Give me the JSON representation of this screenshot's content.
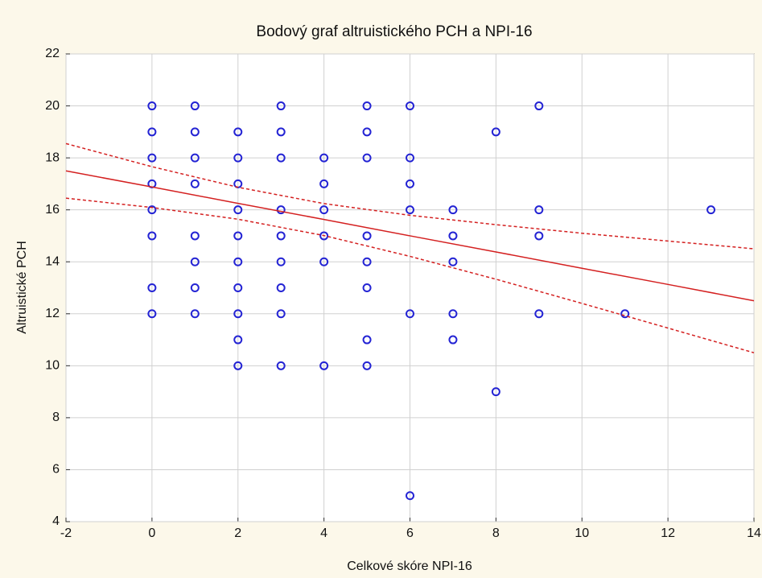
{
  "chart_data": {
    "type": "scatter",
    "title": "Bodový graf altruistického PCH a NPI-16",
    "x_label": "Celkové skóre NPI-16",
    "y_label": "Altruistické PCH",
    "xlim": [
      -2,
      14
    ],
    "xticks": [
      -2,
      0,
      2,
      4,
      6,
      8,
      10,
      12,
      14
    ],
    "ylim": [
      4,
      22
    ],
    "yticks": [
      4,
      6,
      8,
      10,
      12,
      14,
      16,
      18,
      20,
      22
    ],
    "grid": true,
    "series": [
      {
        "type": "scatter",
        "color": "#2424d4",
        "x": [
          0,
          0,
          0,
          0,
          0,
          0,
          0,
          0,
          1,
          1,
          1,
          1,
          1,
          1,
          1,
          1,
          2,
          2,
          2,
          2,
          2,
          2,
          2,
          2,
          2,
          2,
          3,
          3,
          3,
          3,
          3,
          3,
          3,
          3,
          3,
          4,
          4,
          4,
          4,
          4,
          4,
          5,
          5,
          5,
          5,
          5,
          5,
          5,
          5,
          6,
          6,
          6,
          6,
          6,
          6,
          7,
          7,
          7,
          7,
          7,
          8,
          8,
          9,
          9,
          9,
          9,
          11,
          13
        ],
        "values": [
          20,
          19,
          18,
          17,
          16,
          15,
          13,
          12,
          20,
          19,
          18,
          17,
          15,
          14,
          13,
          12,
          19,
          18,
          17,
          16,
          15,
          14,
          13,
          12,
          11,
          10,
          20,
          19,
          18,
          16,
          15,
          14,
          13,
          12,
          10,
          18,
          17,
          16,
          15,
          14,
          10,
          20,
          19,
          18,
          15,
          14,
          13,
          11,
          10,
          20,
          18,
          17,
          16,
          12,
          5,
          16,
          15,
          14,
          12,
          11,
          19,
          9,
          20,
          16,
          15,
          12,
          12,
          16
        ]
      },
      {
        "type": "line",
        "color": "#d42020",
        "dashed": false,
        "x": [
          -2,
          0,
          2,
          4,
          6,
          8,
          10,
          12,
          14
        ],
        "values": [
          17.5,
          16.88,
          16.25,
          15.63,
          15.0,
          14.38,
          13.75,
          13.13,
          12.5
        ]
      },
      {
        "type": "line",
        "color": "#d42020",
        "dashed": true,
        "x": [
          -2,
          0,
          2,
          4,
          6,
          8,
          10,
          12,
          14
        ],
        "values": [
          18.55,
          17.66,
          16.87,
          16.24,
          15.79,
          15.43,
          15.1,
          14.8,
          14.5
        ]
      },
      {
        "type": "line",
        "color": "#d42020",
        "dashed": true,
        "x": [
          -2,
          0,
          2,
          4,
          6,
          8,
          10,
          12,
          14
        ],
        "values": [
          16.45,
          16.09,
          15.64,
          15.01,
          14.21,
          13.33,
          12.4,
          11.45,
          10.5
        ]
      }
    ]
  }
}
